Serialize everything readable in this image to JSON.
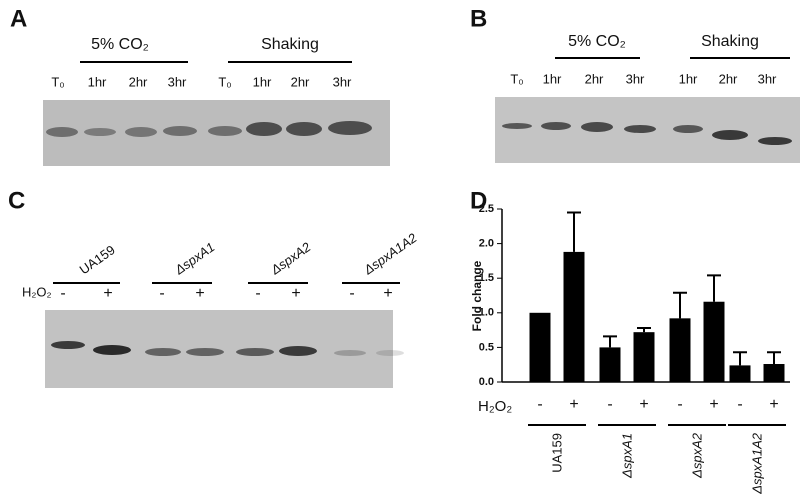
{
  "panel_a": {
    "letter": "A",
    "groups": [
      "5% CO₂",
      "Shaking"
    ],
    "lanes": [
      "T₀",
      "1hr",
      "2hr",
      "3hr",
      "T₀",
      "1hr",
      "2hr",
      "3hr"
    ]
  },
  "panel_b": {
    "letter": "B",
    "groups": [
      "5% CO₂",
      "Shaking"
    ],
    "lanes": [
      "T₀",
      "1hr",
      "2hr",
      "3hr",
      "1hr",
      "2hr",
      "3hr"
    ]
  },
  "panel_c": {
    "letter": "C",
    "strains": [
      "UA159",
      "ΔspxA1",
      "ΔspxA2",
      "ΔspxA1A2"
    ],
    "treatment": "H₂O₂",
    "conditions": [
      "-",
      "+"
    ]
  },
  "panel_d": {
    "letter": "D"
  },
  "chart_data": {
    "type": "bar",
    "y_label": "Fold change",
    "treatment": "H₂O₂",
    "categories": [
      "UA159",
      "ΔspxA1",
      "ΔspxA2",
      "ΔspxA1A2"
    ],
    "series": [
      {
        "name": "-",
        "color": "#000000",
        "values": [
          1.0,
          0.5,
          0.92,
          0.24
        ],
        "errors": [
          null,
          0.16,
          0.37,
          0.19
        ]
      },
      {
        "name": "+",
        "color": "#000000",
        "values": [
          1.88,
          0.72,
          1.16,
          0.26
        ],
        "errors": [
          0.57,
          0.06,
          0.38,
          0.17
        ]
      }
    ],
    "ylim": [
      0,
      2.5
    ],
    "yticks": [
      {
        "value": 0,
        "label": "0.0"
      },
      0.5,
      {
        "value": 1,
        "label": "1.0"
      },
      1.5,
      {
        "value": 2,
        "label": "2.0"
      },
      2.5
    ]
  }
}
